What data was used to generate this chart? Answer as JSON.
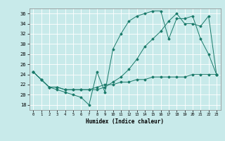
{
  "title": "",
  "xlabel": "Humidex (Indice chaleur)",
  "bg_color": "#c8eaea",
  "line_color": "#1a7a6a",
  "grid_color": "#ffffff",
  "xlim": [
    -0.5,
    23.5
  ],
  "ylim": [
    17,
    37
  ],
  "yticks": [
    18,
    20,
    22,
    24,
    26,
    28,
    30,
    32,
    34,
    36
  ],
  "xticks": [
    0,
    1,
    2,
    3,
    4,
    5,
    6,
    7,
    8,
    9,
    10,
    11,
    12,
    13,
    14,
    15,
    16,
    17,
    18,
    19,
    20,
    21,
    22,
    23
  ],
  "line1_x": [
    0,
    1,
    2,
    3,
    4,
    5,
    6,
    7,
    8,
    9,
    10,
    11,
    12,
    13,
    14,
    15,
    16,
    17,
    18,
    19,
    20,
    21,
    22,
    23
  ],
  "line1_y": [
    24.5,
    23.0,
    21.5,
    21.0,
    20.5,
    20.0,
    19.5,
    18.0,
    24.5,
    20.5,
    29.0,
    32.0,
    34.5,
    35.5,
    36.0,
    36.5,
    36.5,
    31.0,
    35.0,
    35.0,
    35.5,
    31.0,
    28.0,
    24.0
  ],
  "line2_x": [
    0,
    1,
    2,
    3,
    4,
    5,
    6,
    7,
    8,
    9,
    10,
    11,
    12,
    13,
    14,
    15,
    16,
    17,
    18,
    19,
    20,
    21,
    22,
    23
  ],
  "line2_y": [
    24.5,
    23.0,
    21.5,
    21.5,
    21.0,
    21.0,
    21.0,
    21.0,
    21.0,
    21.5,
    22.5,
    23.5,
    25.0,
    27.0,
    29.5,
    31.0,
    32.5,
    34.5,
    36.0,
    34.0,
    34.0,
    33.5,
    35.5,
    24.0
  ],
  "line3_x": [
    0,
    1,
    2,
    3,
    4,
    5,
    6,
    7,
    8,
    9,
    10,
    11,
    12,
    13,
    14,
    15,
    16,
    17,
    18,
    19,
    20,
    21,
    22,
    23
  ],
  "line3_y": [
    24.5,
    23.0,
    21.5,
    21.5,
    21.0,
    21.0,
    21.0,
    21.0,
    21.5,
    22.0,
    22.0,
    22.5,
    22.5,
    23.0,
    23.0,
    23.5,
    23.5,
    23.5,
    23.5,
    23.5,
    24.0,
    24.0,
    24.0,
    24.0
  ]
}
